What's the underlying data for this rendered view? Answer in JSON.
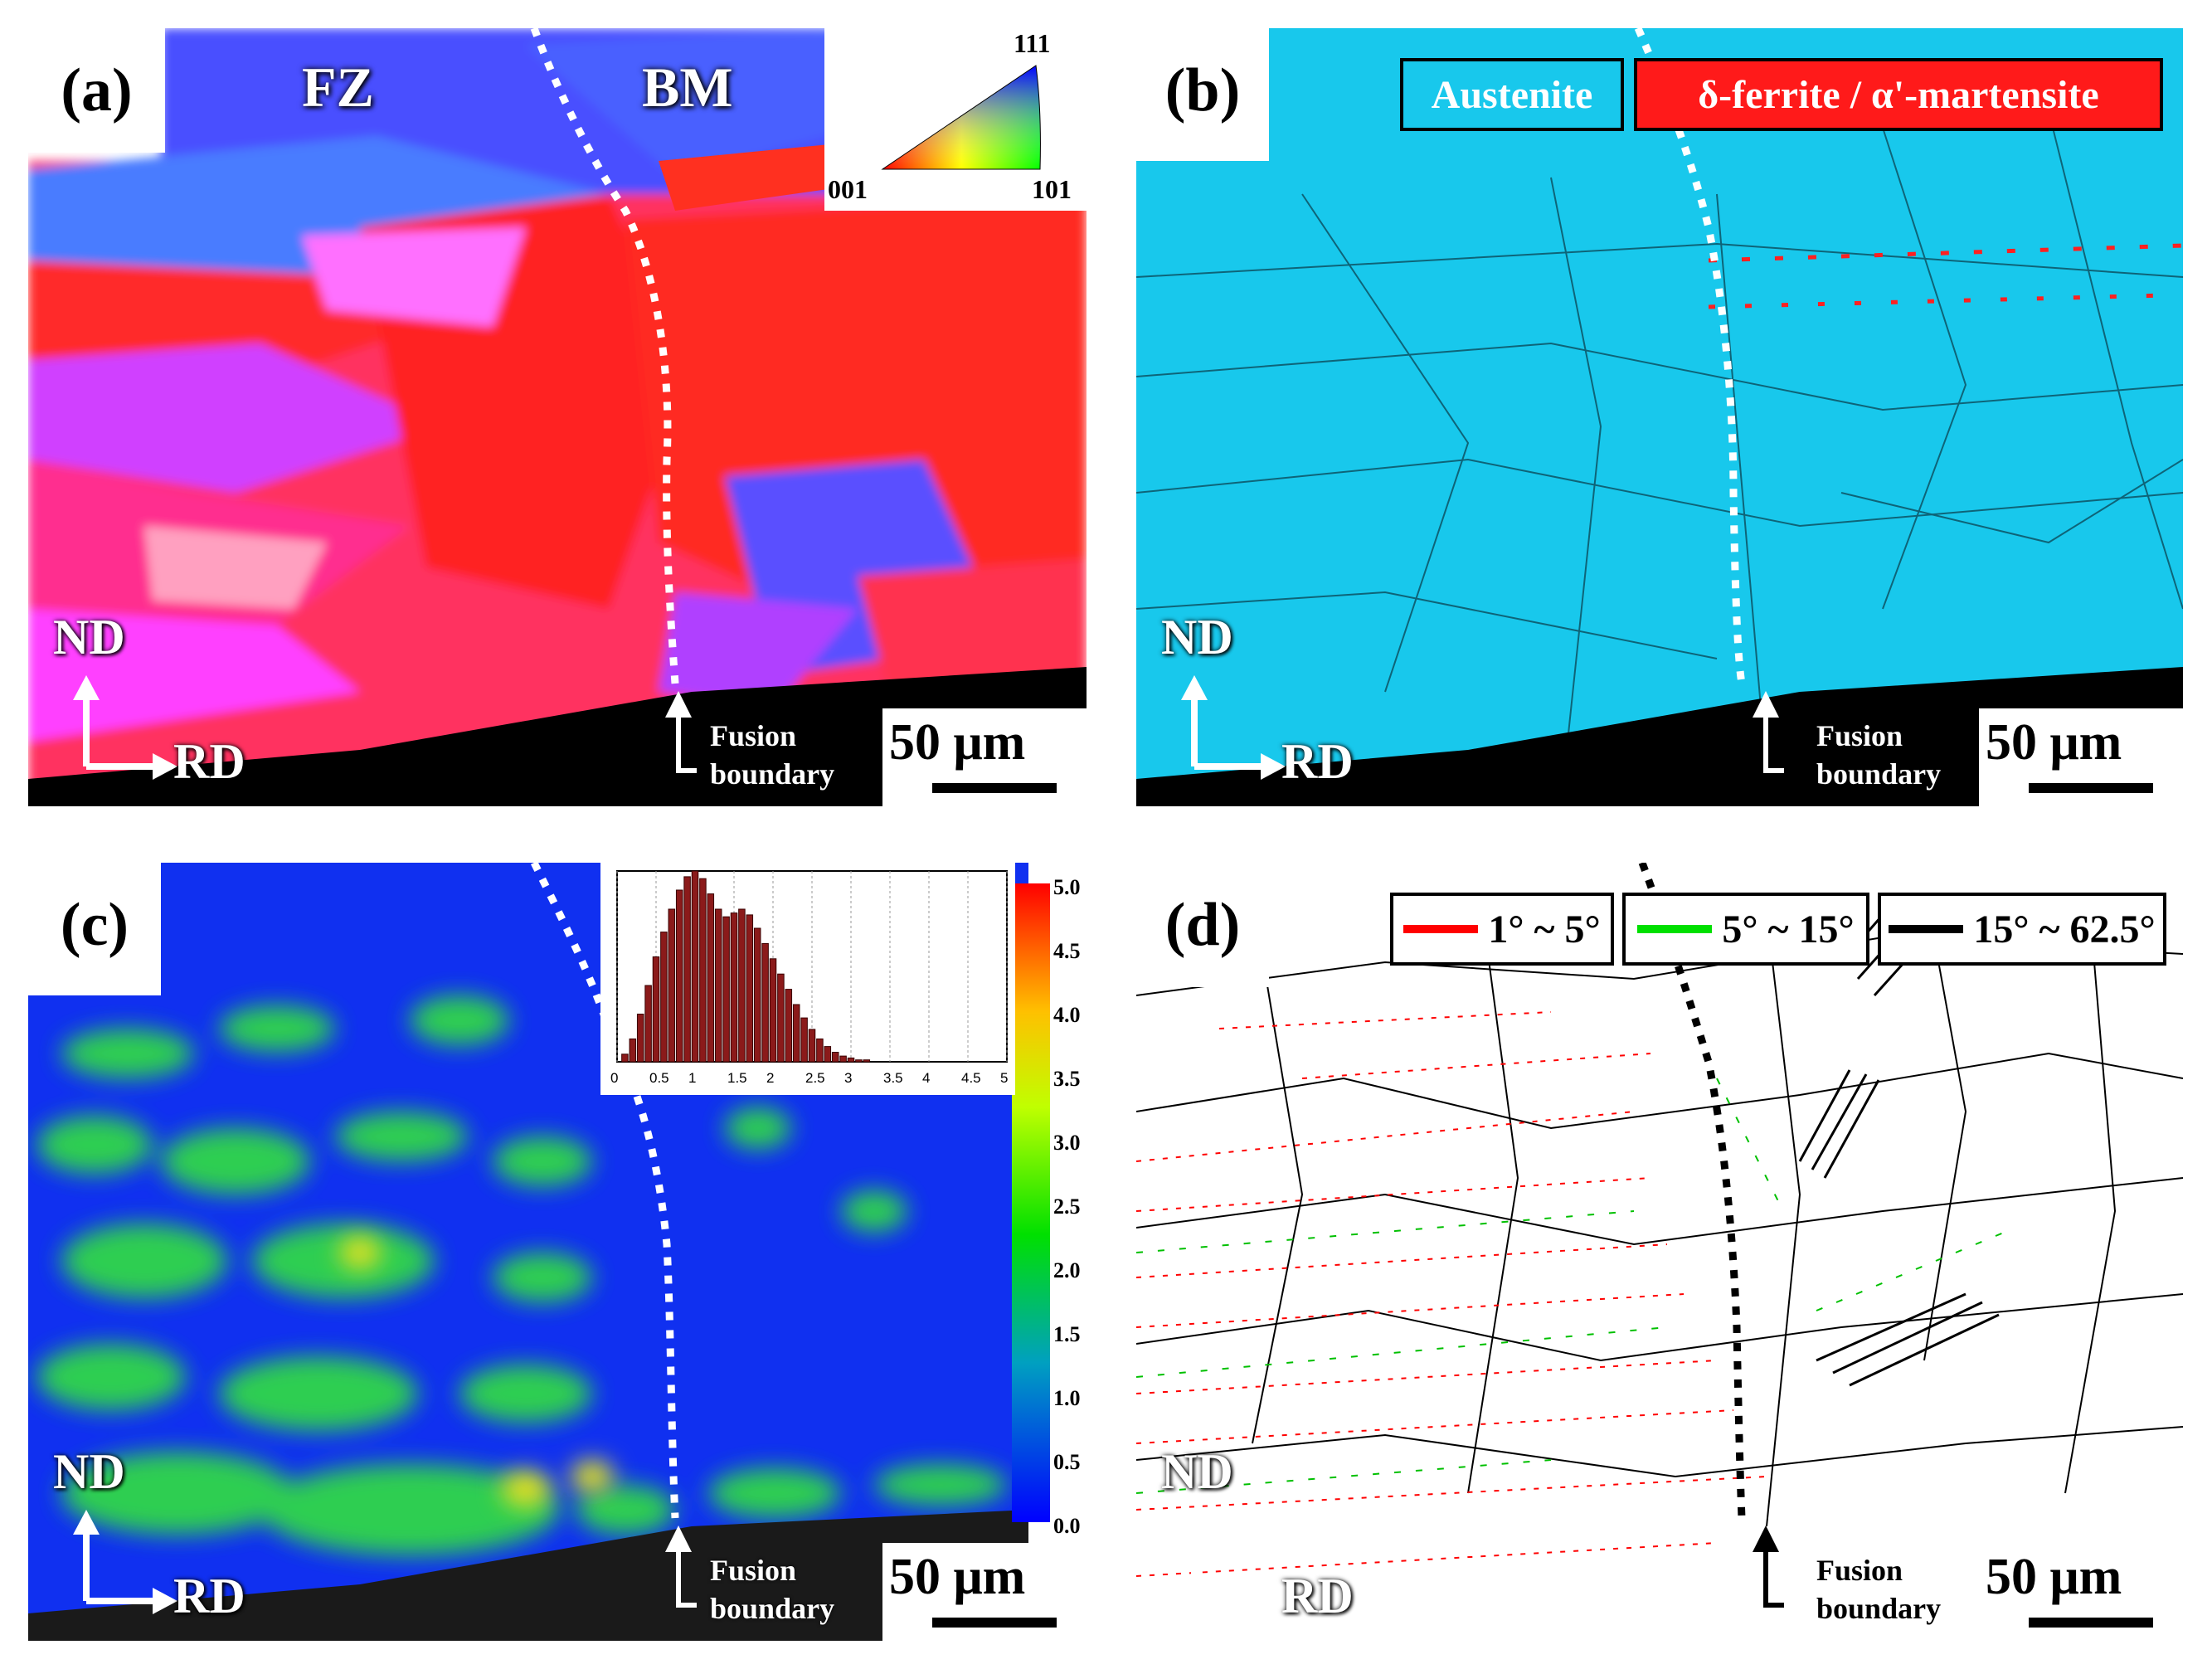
{
  "panels": {
    "a": {
      "tag": "(a)",
      "fz": "FZ",
      "bm": "BM",
      "ipf": {
        "top": "111",
        "left": "001",
        "right": "101"
      }
    },
    "b": {
      "tag": "(b)",
      "legend": {
        "austenite": "Austenite",
        "ferrite": "δ-ferrite / α'-martensite"
      },
      "colors": {
        "austenite": "#18c8ec",
        "ferrite": "#ff1a1a"
      }
    },
    "c": {
      "tag": "(c)",
      "colorbar_ticks": [
        "5.0",
        "4.5",
        "4.0",
        "3.5",
        "3.0",
        "2.5",
        "2.0",
        "1.5",
        "1.0",
        "0.5",
        "0.0"
      ],
      "hist_ticks": [
        "0",
        "0.5",
        "1",
        "1.5",
        "2",
        "2.5",
        "3",
        "3.5",
        "4",
        "4.5",
        "5"
      ]
    },
    "d": {
      "tag": "(d)",
      "legend": [
        "1° ~ 5°",
        "5° ~ 15°",
        "15° ~ 62.5°"
      ],
      "colors": [
        "#ff0000",
        "#00e000",
        "#000000"
      ]
    }
  },
  "common": {
    "nd": "ND",
    "rd": "RD",
    "fusion_line1": "Fusion",
    "fusion_line2": "boundary",
    "scale": "50 μm"
  },
  "chart_data": {
    "type": "bar",
    "x": [
      0.1,
      0.2,
      0.3,
      0.4,
      0.5,
      0.6,
      0.7,
      0.8,
      0.9,
      1.0,
      1.1,
      1.2,
      1.3,
      1.4,
      1.5,
      1.6,
      1.7,
      1.8,
      1.9,
      2.0,
      2.1,
      2.2,
      2.3,
      2.4,
      2.5,
      2.6,
      2.7,
      2.8,
      2.9,
      3.0,
      3.1,
      3.2
    ],
    "values": [
      0.04,
      0.12,
      0.25,
      0.4,
      0.55,
      0.68,
      0.8,
      0.9,
      0.97,
      1.0,
      0.96,
      0.88,
      0.8,
      0.76,
      0.78,
      0.8,
      0.77,
      0.7,
      0.62,
      0.54,
      0.46,
      0.38,
      0.3,
      0.23,
      0.17,
      0.12,
      0.08,
      0.05,
      0.03,
      0.02,
      0.01,
      0.01
    ],
    "xlim": [
      0,
      5
    ],
    "ylim": [
      0,
      1
    ]
  }
}
